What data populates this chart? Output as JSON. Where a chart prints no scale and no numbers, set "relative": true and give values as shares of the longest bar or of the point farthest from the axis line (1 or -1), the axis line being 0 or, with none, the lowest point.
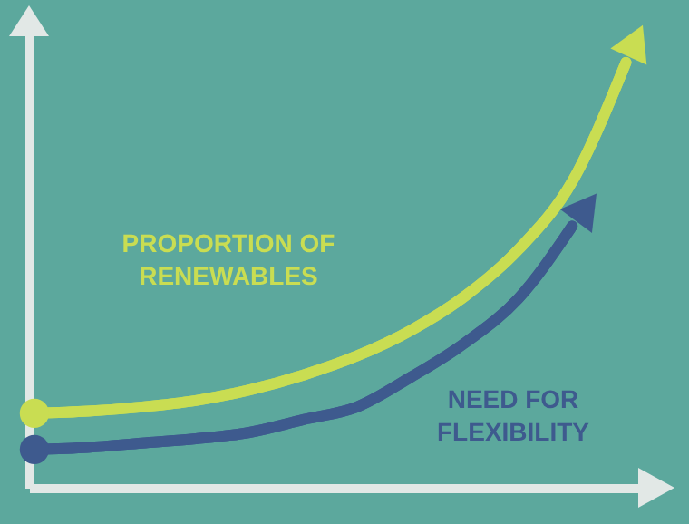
{
  "chart_data": {
    "type": "line",
    "relative": true,
    "grid": false,
    "categories": [
      null,
      null,
      null,
      null,
      null,
      null,
      null,
      null,
      null,
      null,
      null,
      null
    ],
    "series": [
      {
        "name": "PROPORTION OF RENEWABLES",
        "color": "#c9dd52",
        "values": [
          0.175,
          0.18,
          0.19,
          0.205,
          0.23,
          0.265,
          0.31,
          0.37,
          0.45,
          0.56,
          0.72,
          1
        ]
      },
      {
        "name": "NEED FOR FLEXIBILITY",
        "color": "#3e5a8e",
        "values": [
          0.09,
          0.095,
          0.105,
          0.115,
          0.13,
          0.16,
          0.19,
          0.26,
          0.34,
          0.445,
          0.615,
          null
        ]
      }
    ]
  }
}
